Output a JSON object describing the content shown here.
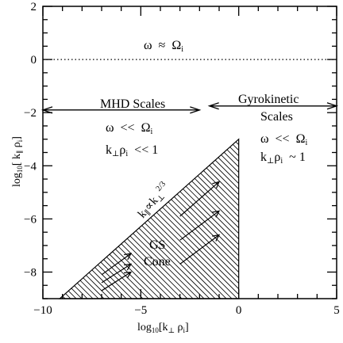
{
  "chart_data": {
    "type": "diagram",
    "xlim": [
      -10,
      5
    ],
    "ylim": [
      -9,
      2
    ],
    "xlabel": {
      "main": "log",
      "sub": "10",
      "rest": "[k",
      "perp": "⊥",
      "rho": " ρ",
      "rho_sub": "i",
      "close": "]"
    },
    "ylabel": {
      "main": "log",
      "sub": "10",
      "rest": "[ k",
      "par": "∥",
      "rho": " ρ",
      "rho_sub": "i",
      "close": "]"
    },
    "xticks": [
      -10,
      -5,
      0,
      5
    ],
    "yticks": [
      2,
      0,
      -2,
      -4,
      -6,
      -8
    ],
    "dotted_line_y": 0,
    "label_upper": {
      "omega": "ω",
      "approx": "≈",
      "Omega": "Ω",
      "sub": "i"
    },
    "label_mhd": "MHD Scales",
    "label_gyro_1": "Gyrokinetic",
    "label_gyro_2": "Scales",
    "mhd_arrow": {
      "from": -10,
      "to": -2,
      "y": -1.9
    },
    "gyro_arrow": {
      "from": -1.5,
      "to": 5,
      "y": -1.75
    },
    "mhd_condition_1": {
      "omega": "ω",
      "ll": "<<",
      "Omega": "Ω",
      "sub": "i"
    },
    "mhd_condition_2": {
      "k": "k",
      "perp": "⊥",
      "rho": "ρ",
      "sub": "i",
      "rest": "<< 1"
    },
    "gyro_condition_1": {
      "omega": "ω",
      "ll": "<<",
      "Omega": "Ω",
      "sub": "i"
    },
    "gyro_condition_2": {
      "k": "k",
      "perp": "⊥",
      "rho": "ρ",
      "sub": "i",
      "rest": "~ 1"
    },
    "cone_label_1": "GS",
    "cone_label_2": "Cone",
    "cone_line_label": {
      "k": "k",
      "par": "∥",
      "prop": "∝",
      "k2": "k",
      "perp": "⊥",
      "exp": "2/3"
    },
    "cone": {
      "apex": [
        0,
        -3
      ],
      "base_left": [
        -9.14,
        -9
      ],
      "base_right": [
        0,
        -9
      ]
    },
    "cascade_arrows": [
      {
        "x0": -7,
        "y0": -8.7,
        "x1": -5.5,
        "y1": -8.0
      },
      {
        "x0": -7,
        "y0": -8.4,
        "x1": -5.5,
        "y1": -7.7
      },
      {
        "x0": -7,
        "y0": -8.1,
        "x1": -5.5,
        "y1": -7.3
      },
      {
        "x0": -3,
        "y0": -5.9,
        "x1": -1,
        "y1": -4.6
      },
      {
        "x0": -3,
        "y0": -6.8,
        "x1": -1,
        "y1": -5.7
      },
      {
        "x0": -3,
        "y0": -7.7,
        "x1": -1,
        "y1": -6.6
      }
    ]
  }
}
